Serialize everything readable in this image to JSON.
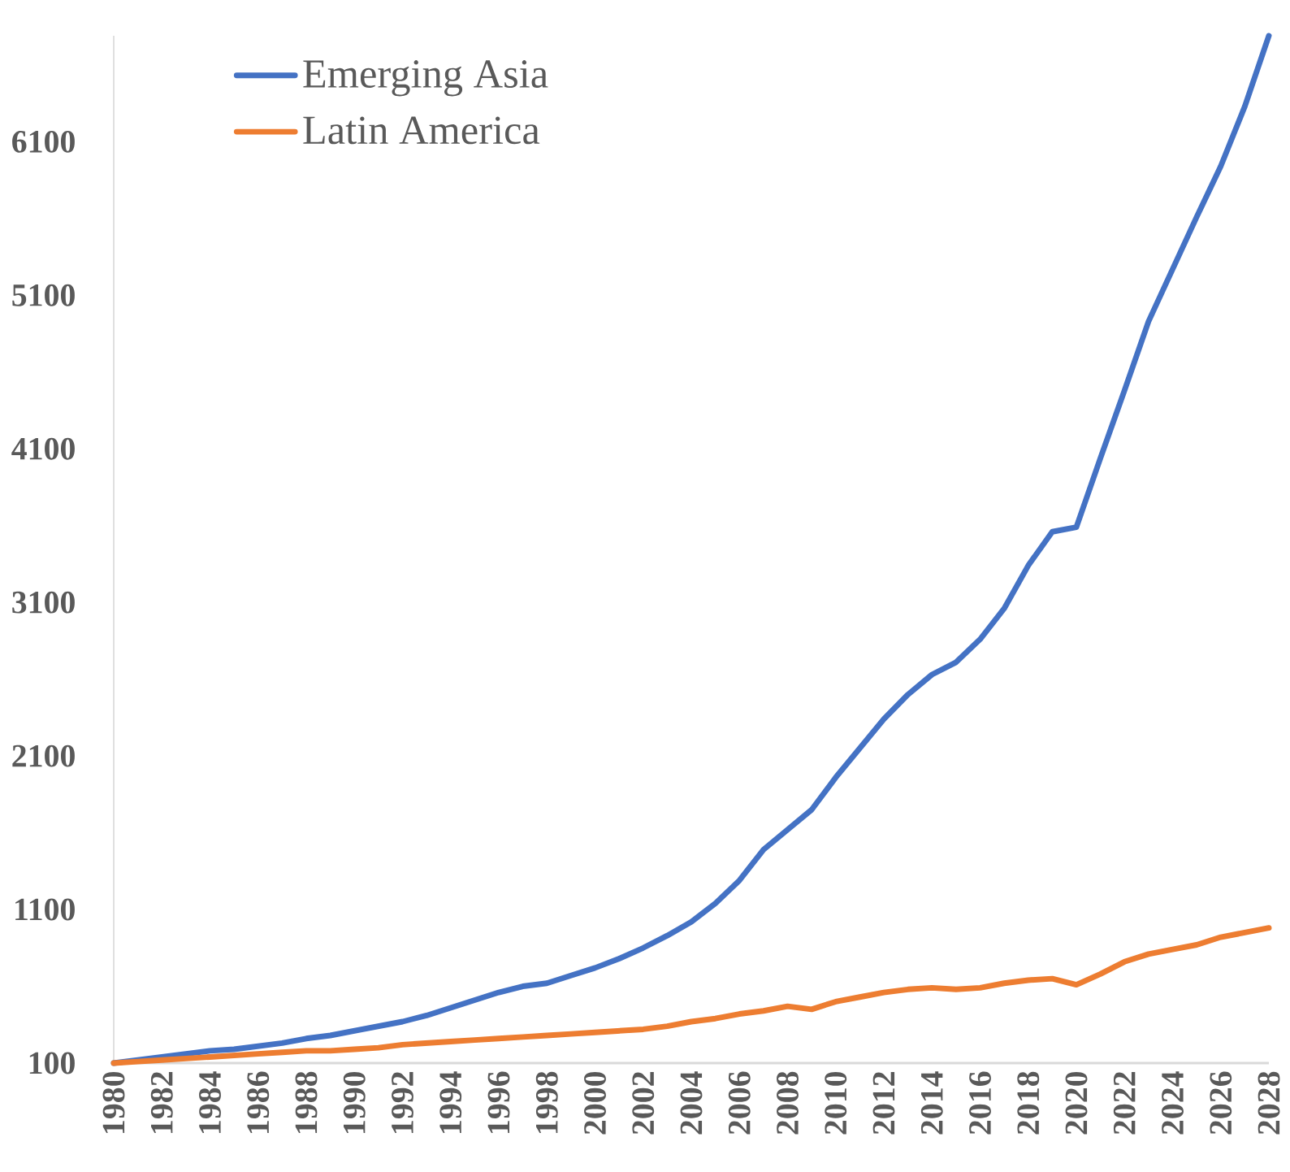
{
  "chart_data": {
    "type": "line",
    "legend": "top left",
    "x": [
      1980,
      1981,
      1982,
      1983,
      1984,
      1985,
      1986,
      1987,
      1988,
      1989,
      1990,
      1991,
      1992,
      1993,
      1994,
      1995,
      1996,
      1997,
      1998,
      1999,
      2000,
      2001,
      2002,
      2003,
      2004,
      2005,
      2006,
      2007,
      2008,
      2009,
      2010,
      2011,
      2012,
      2013,
      2014,
      2015,
      2016,
      2017,
      2018,
      2019,
      2020,
      2021,
      2022,
      2023,
      2024,
      2025,
      2026,
      2027,
      2028
    ],
    "xlim": [
      1980,
      2028
    ],
    "xticks": [
      1980,
      1982,
      1984,
      1986,
      1988,
      1990,
      1992,
      1994,
      1996,
      1998,
      2000,
      2002,
      2004,
      2006,
      2008,
      2010,
      2012,
      2014,
      2016,
      2018,
      2020,
      2022,
      2024,
      2026,
      2028
    ],
    "ylim": [
      100,
      6790
    ],
    "yticks": [
      100,
      1100,
      2100,
      3100,
      4100,
      5100,
      6100
    ],
    "series": [
      {
        "name": "Emerging Asia",
        "color": "#4472c4",
        "values": [
          100,
          120,
          140,
          160,
          180,
          190,
          210,
          230,
          260,
          280,
          310,
          340,
          370,
          410,
          460,
          510,
          560,
          600,
          620,
          670,
          720,
          780,
          850,
          930,
          1020,
          1140,
          1290,
          1490,
          1620,
          1750,
          1960,
          2150,
          2340,
          2500,
          2630,
          2710,
          2860,
          3060,
          3340,
          3560,
          3590,
          4040,
          4480,
          4930,
          5270,
          5610,
          5940,
          6330,
          6790
        ]
      },
      {
        "name": "Latin America",
        "color": "#ed7d31",
        "values": [
          100,
          110,
          120,
          130,
          140,
          150,
          160,
          170,
          180,
          180,
          190,
          200,
          220,
          230,
          240,
          250,
          260,
          270,
          280,
          290,
          300,
          310,
          320,
          340,
          370,
          390,
          420,
          440,
          470,
          450,
          500,
          530,
          560,
          580,
          590,
          580,
          590,
          620,
          640,
          650,
          610,
          680,
          760,
          810,
          840,
          870,
          920,
          950,
          980
        ]
      }
    ]
  }
}
